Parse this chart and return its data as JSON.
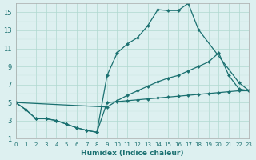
{
  "color": "#1a7070",
  "bg_color": "#ddf0f0",
  "grid_major_color": "#b0d8d0",
  "grid_minor_color": "#c5e5e0",
  "xlabel": "Humidex (Indice chaleur)",
  "xlim": [
    0,
    23
  ],
  "ylim": [
    1,
    16
  ],
  "xticks": [
    0,
    1,
    2,
    3,
    4,
    5,
    6,
    7,
    8,
    9,
    10,
    11,
    12,
    13,
    14,
    15,
    16,
    17,
    18,
    19,
    20,
    21,
    22,
    23
  ],
  "yticks": [
    1,
    3,
    5,
    7,
    9,
    11,
    13,
    15
  ],
  "series": [
    {
      "x": [
        0,
        1,
        2,
        3,
        4,
        5,
        6,
        7,
        8,
        9,
        10,
        11,
        12,
        13,
        14,
        15,
        16,
        17,
        18,
        22,
        23
      ],
      "y": [
        5.0,
        4.2,
        3.2,
        3.2,
        3.0,
        2.6,
        2.2,
        1.9,
        1.7,
        8.0,
        10.5,
        11.5,
        12.2,
        13.5,
        15.3,
        15.2,
        15.2,
        16.0,
        13.1,
        7.2,
        6.3
      ]
    },
    {
      "x": [
        0,
        9,
        10,
        11,
        12,
        13,
        14,
        15,
        16,
        17,
        18,
        19,
        20,
        21,
        22,
        23
      ],
      "y": [
        5.0,
        4.5,
        5.2,
        5.8,
        6.3,
        6.8,
        7.3,
        7.7,
        8.0,
        8.5,
        9.0,
        9.5,
        10.5,
        8.0,
        6.5,
        6.3
      ]
    },
    {
      "x": [
        0,
        1,
        2,
        3,
        4,
        5,
        6,
        7,
        8,
        9,
        10,
        11,
        12,
        13,
        14,
        15,
        16,
        17,
        18,
        19,
        20,
        21,
        22,
        23
      ],
      "y": [
        5.0,
        4.2,
        3.2,
        3.2,
        3.0,
        2.6,
        2.2,
        1.9,
        1.7,
        5.0,
        5.1,
        5.2,
        5.3,
        5.4,
        5.5,
        5.6,
        5.7,
        5.8,
        5.9,
        6.0,
        6.1,
        6.2,
        6.3,
        6.3
      ]
    }
  ]
}
